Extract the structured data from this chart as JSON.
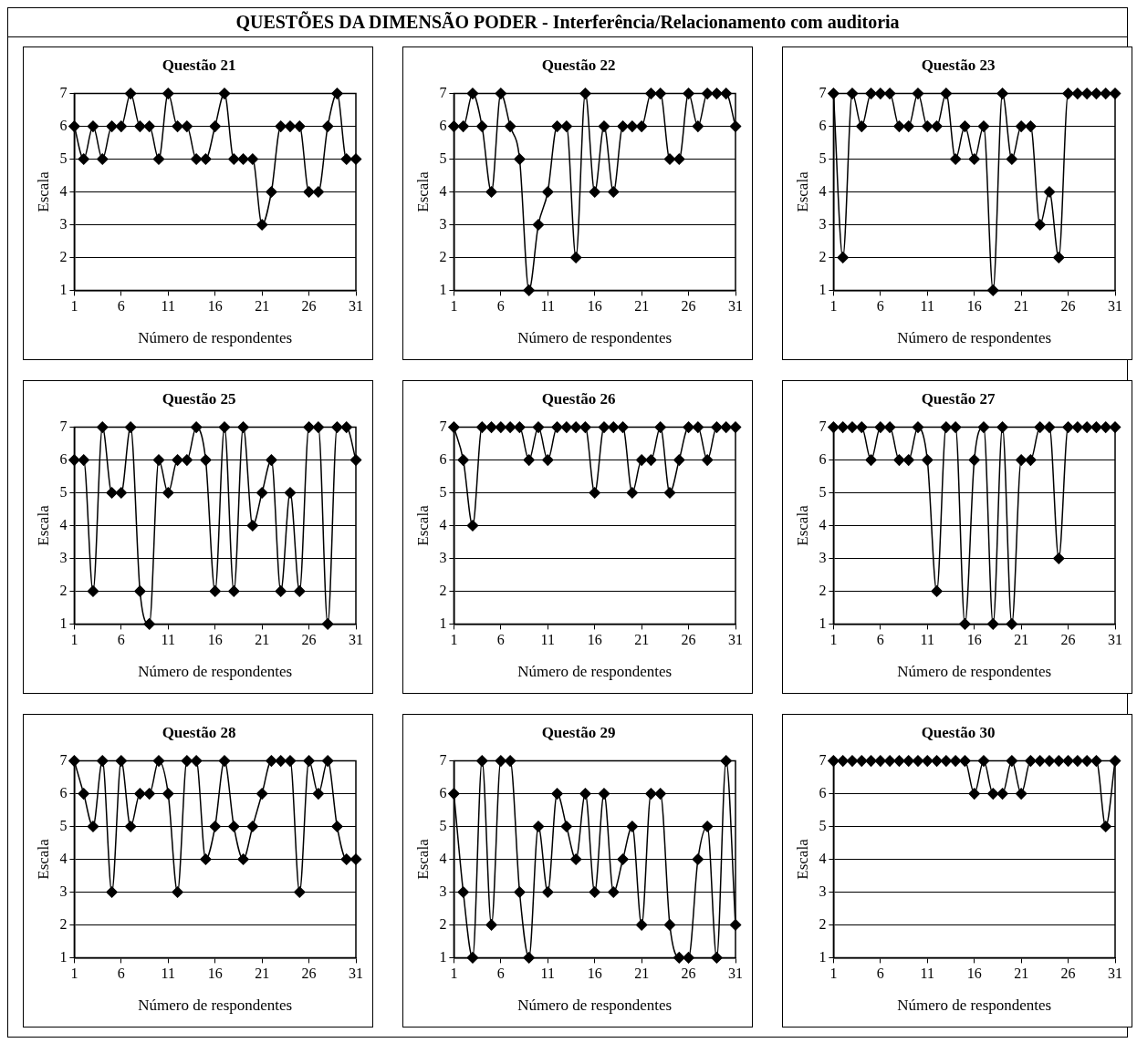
{
  "chart_data": [
    {
      "type": "other",
      "title": "QUESTÕES DA DIMENSÃO PODER - Interferência/Relacionamento com auditoria"
    },
    {
      "type": "line",
      "title": "Questão 21",
      "xlabel": "Número de respondentes",
      "ylabel": "Escala",
      "x": [
        1,
        2,
        3,
        4,
        5,
        6,
        7,
        8,
        9,
        10,
        11,
        12,
        13,
        14,
        15,
        16,
        17,
        18,
        19,
        20,
        21,
        22,
        23,
        24,
        25,
        26,
        27,
        28,
        29,
        30,
        31
      ],
      "xlim": [
        1,
        31
      ],
      "xticks": [
        1,
        6,
        11,
        16,
        21,
        26,
        31
      ],
      "ylim": [
        1,
        7
      ],
      "yticks": [
        1,
        2,
        3,
        4,
        5,
        6,
        7
      ],
      "grid": "y",
      "marker": "diamond",
      "line_style": "solid",
      "legend": false,
      "series": [
        {
          "color": "#000000",
          "values": [
            6,
            5,
            6,
            5,
            6,
            6,
            7,
            6,
            6,
            5,
            7,
            6,
            6,
            5,
            5,
            6,
            7,
            5,
            5,
            5,
            3,
            4,
            6,
            6,
            6,
            4,
            4,
            6,
            7,
            5,
            5
          ]
        }
      ]
    },
    {
      "type": "line",
      "title": "Questão 22",
      "xlabel": "Número de respondentes",
      "ylabel": "Escala",
      "x": [
        1,
        2,
        3,
        4,
        5,
        6,
        7,
        8,
        9,
        10,
        11,
        12,
        13,
        14,
        15,
        16,
        17,
        18,
        19,
        20,
        21,
        22,
        23,
        24,
        25,
        26,
        27,
        28,
        29,
        30,
        31
      ],
      "xlim": [
        1,
        31
      ],
      "xticks": [
        1,
        6,
        11,
        16,
        21,
        26,
        31
      ],
      "ylim": [
        1,
        7
      ],
      "yticks": [
        1,
        2,
        3,
        4,
        5,
        6,
        7
      ],
      "grid": "y",
      "marker": "diamond",
      "line_style": "solid",
      "legend": false,
      "series": [
        {
          "color": "#000000",
          "values": [
            6,
            6,
            7,
            6,
            4,
            7,
            6,
            5,
            1,
            3,
            4,
            6,
            6,
            2,
            7,
            4,
            6,
            4,
            6,
            6,
            6,
            7,
            7,
            5,
            5,
            7,
            6,
            7,
            7,
            7,
            6
          ]
        }
      ]
    },
    {
      "type": "line",
      "title": "Questão 23",
      "xlabel": "Número de respondentes",
      "ylabel": "Escala",
      "x": [
        1,
        2,
        3,
        4,
        5,
        6,
        7,
        8,
        9,
        10,
        11,
        12,
        13,
        14,
        15,
        16,
        17,
        18,
        19,
        20,
        21,
        22,
        23,
        24,
        25,
        26,
        27,
        28,
        29,
        30,
        31
      ],
      "xlim": [
        1,
        31
      ],
      "xticks": [
        1,
        6,
        11,
        16,
        21,
        26,
        31
      ],
      "ylim": [
        1,
        7
      ],
      "yticks": [
        1,
        2,
        3,
        4,
        5,
        6,
        7
      ],
      "grid": "y",
      "marker": "diamond",
      "line_style": "solid",
      "legend": false,
      "series": [
        {
          "color": "#000000",
          "values": [
            7,
            2,
            7,
            6,
            7,
            7,
            7,
            6,
            6,
            7,
            6,
            6,
            7,
            5,
            6,
            5,
            6,
            1,
            7,
            5,
            6,
            6,
            3,
            4,
            2,
            7,
            7,
            7,
            7,
            7,
            7
          ]
        }
      ]
    },
    {
      "type": "line",
      "title": "Questão 25",
      "xlabel": "Número de respondentes",
      "ylabel": "Escala",
      "x": [
        1,
        2,
        3,
        4,
        5,
        6,
        7,
        8,
        9,
        10,
        11,
        12,
        13,
        14,
        15,
        16,
        17,
        18,
        19,
        20,
        21,
        22,
        23,
        24,
        25,
        26,
        27,
        28,
        29,
        30,
        31
      ],
      "xlim": [
        1,
        31
      ],
      "xticks": [
        1,
        6,
        11,
        16,
        21,
        26,
        31
      ],
      "ylim": [
        1,
        7
      ],
      "yticks": [
        1,
        2,
        3,
        4,
        5,
        6,
        7
      ],
      "grid": "y",
      "marker": "diamond",
      "line_style": "solid",
      "legend": false,
      "series": [
        {
          "color": "#000000",
          "values": [
            6,
            6,
            2,
            7,
            5,
            5,
            7,
            2,
            1,
            6,
            5,
            6,
            6,
            7,
            6,
            2,
            7,
            2,
            7,
            4,
            5,
            6,
            2,
            5,
            2,
            7,
            7,
            1,
            7,
            7,
            6
          ]
        }
      ]
    },
    {
      "type": "line",
      "title": "Questão 26",
      "xlabel": "Número de respondentes",
      "ylabel": "Escala",
      "x": [
        1,
        2,
        3,
        4,
        5,
        6,
        7,
        8,
        9,
        10,
        11,
        12,
        13,
        14,
        15,
        16,
        17,
        18,
        19,
        20,
        21,
        22,
        23,
        24,
        25,
        26,
        27,
        28,
        29,
        30,
        31
      ],
      "xlim": [
        1,
        31
      ],
      "xticks": [
        1,
        6,
        11,
        16,
        21,
        26,
        31
      ],
      "ylim": [
        1,
        7
      ],
      "yticks": [
        1,
        2,
        3,
        4,
        5,
        6,
        7
      ],
      "grid": "y",
      "marker": "diamond",
      "line_style": "solid",
      "legend": false,
      "series": [
        {
          "color": "#000000",
          "values": [
            7,
            6,
            4,
            7,
            7,
            7,
            7,
            7,
            6,
            7,
            6,
            7,
            7,
            7,
            7,
            5,
            7,
            7,
            7,
            5,
            6,
            6,
            7,
            5,
            6,
            7,
            7,
            6,
            7,
            7,
            7
          ]
        }
      ]
    },
    {
      "type": "line",
      "title": "Questão 27",
      "xlabel": "Número de respondentes",
      "ylabel": "Escala",
      "x": [
        1,
        2,
        3,
        4,
        5,
        6,
        7,
        8,
        9,
        10,
        11,
        12,
        13,
        14,
        15,
        16,
        17,
        18,
        19,
        20,
        21,
        22,
        23,
        24,
        25,
        26,
        27,
        28,
        29,
        30,
        31
      ],
      "xlim": [
        1,
        31
      ],
      "xticks": [
        1,
        6,
        11,
        16,
        21,
        26,
        31
      ],
      "ylim": [
        1,
        7
      ],
      "yticks": [
        1,
        2,
        3,
        4,
        5,
        6,
        7
      ],
      "grid": "y",
      "marker": "diamond",
      "line_style": "solid",
      "legend": false,
      "series": [
        {
          "color": "#000000",
          "values": [
            7,
            7,
            7,
            7,
            6,
            7,
            7,
            6,
            6,
            7,
            6,
            2,
            7,
            7,
            1,
            6,
            7,
            1,
            7,
            1,
            6,
            6,
            7,
            7,
            3,
            7,
            7,
            7,
            7,
            7,
            7
          ]
        }
      ]
    },
    {
      "type": "line",
      "title": "Questão 28",
      "xlabel": "Número de respondentes",
      "ylabel": "Escala",
      "x": [
        1,
        2,
        3,
        4,
        5,
        6,
        7,
        8,
        9,
        10,
        11,
        12,
        13,
        14,
        15,
        16,
        17,
        18,
        19,
        20,
        21,
        22,
        23,
        24,
        25,
        26,
        27,
        28,
        29,
        30,
        31
      ],
      "xlim": [
        1,
        31
      ],
      "xticks": [
        1,
        6,
        11,
        16,
        21,
        26,
        31
      ],
      "ylim": [
        1,
        7
      ],
      "yticks": [
        1,
        2,
        3,
        4,
        5,
        6,
        7
      ],
      "grid": "y",
      "marker": "diamond",
      "line_style": "solid",
      "legend": false,
      "series": [
        {
          "color": "#000000",
          "values": [
            7,
            6,
            5,
            7,
            3,
            7,
            5,
            6,
            6,
            7,
            6,
            3,
            7,
            7,
            4,
            5,
            7,
            5,
            4,
            5,
            6,
            7,
            7,
            7,
            3,
            7,
            6,
            7,
            5,
            4,
            4
          ]
        }
      ]
    },
    {
      "type": "line",
      "title": "Questão 29",
      "xlabel": "Número de respondentes",
      "ylabel": "Escala",
      "x": [
        1,
        2,
        3,
        4,
        5,
        6,
        7,
        8,
        9,
        10,
        11,
        12,
        13,
        14,
        15,
        16,
        17,
        18,
        19,
        20,
        21,
        22,
        23,
        24,
        25,
        26,
        27,
        28,
        29,
        30,
        31
      ],
      "xlim": [
        1,
        31
      ],
      "xticks": [
        1,
        6,
        11,
        16,
        21,
        26,
        31
      ],
      "ylim": [
        1,
        7
      ],
      "yticks": [
        1,
        2,
        3,
        4,
        5,
        6,
        7
      ],
      "grid": "y",
      "marker": "diamond",
      "line_style": "solid",
      "legend": false,
      "series": [
        {
          "color": "#000000",
          "values": [
            6,
            3,
            1,
            7,
            2,
            7,
            7,
            3,
            1,
            5,
            3,
            6,
            5,
            4,
            6,
            3,
            6,
            3,
            4,
            5,
            2,
            6,
            6,
            2,
            1,
            1,
            4,
            5,
            1,
            7,
            2
          ]
        }
      ]
    },
    {
      "type": "line",
      "title": "Questão 30",
      "xlabel": "Número de respondentes",
      "ylabel": "Escala",
      "x": [
        1,
        2,
        3,
        4,
        5,
        6,
        7,
        8,
        9,
        10,
        11,
        12,
        13,
        14,
        15,
        16,
        17,
        18,
        19,
        20,
        21,
        22,
        23,
        24,
        25,
        26,
        27,
        28,
        29,
        30,
        31
      ],
      "xlim": [
        1,
        31
      ],
      "xticks": [
        1,
        6,
        11,
        16,
        21,
        26,
        31
      ],
      "ylim": [
        1,
        7
      ],
      "yticks": [
        1,
        2,
        3,
        4,
        5,
        6,
        7
      ],
      "grid": "y",
      "marker": "diamond",
      "line_style": "solid",
      "legend": false,
      "series": [
        {
          "color": "#000000",
          "values": [
            7,
            7,
            7,
            7,
            7,
            7,
            7,
            7,
            7,
            7,
            7,
            7,
            7,
            7,
            7,
            6,
            7,
            6,
            6,
            7,
            6,
            7,
            7,
            7,
            7,
            7,
            7,
            7,
            7,
            5,
            7
          ]
        }
      ]
    }
  ]
}
